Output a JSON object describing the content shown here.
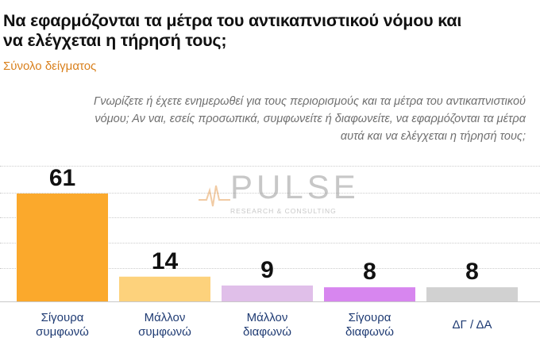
{
  "title": "Να εφαρμόζονται τα μέτρα του αντικαπνιστικού νόμου και να ελέγχεται η τήρησή τους;",
  "subtitle": "Σύνολο δείγματος",
  "question": "Γνωρίζετε ή έχετε ενημερωθεί για τους περιορισμούς και τα μέτρα του αντικαπνιστικού νόμου; Αν ναι, εσείς προσωπικά, συμφωνείτε ή διαφωνείτε, να εφαρμόζονται τα μέτρα αυτά και να ελέγχεται η τήρησή τους;",
  "watermark": {
    "word": "PULSE",
    "sub": "RESEARCH & CONSULTING"
  },
  "chart_data": {
    "type": "bar",
    "categories": [
      [
        "Σίγουρα",
        "συμφωνώ"
      ],
      [
        "Μάλλον",
        "συμφωνώ"
      ],
      [
        "Μάλλον",
        "διαφωνώ"
      ],
      [
        "Σίγουρα",
        "διαφωνώ"
      ],
      [
        "ΔΓ / ΔΑ"
      ]
    ],
    "values": [
      61,
      14,
      9,
      8,
      8
    ],
    "colors": [
      "#fba92c",
      "#fdd27c",
      "#e0bfe9",
      "#d786ef",
      "#d1d1d1"
    ],
    "ylim": [
      0,
      61
    ]
  }
}
